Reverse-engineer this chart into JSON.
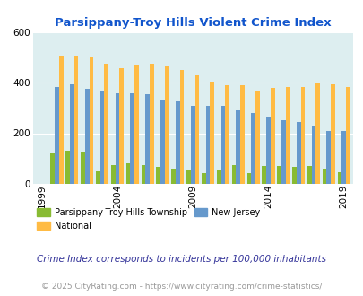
{
  "title": "Parsippany-Troy Hills Violent Crime Index",
  "years": [
    1999,
    2000,
    2001,
    2002,
    2003,
    2004,
    2005,
    2006,
    2007,
    2008,
    2009,
    2010,
    2011,
    2012,
    2013,
    2014,
    2015,
    2016,
    2017,
    2018,
    2019
  ],
  "parsippany": [
    0,
    120,
    130,
    125,
    50,
    75,
    80,
    75,
    65,
    60,
    55,
    40,
    55,
    75,
    40,
    70,
    70,
    65,
    70,
    60,
    45
  ],
  "national": [
    0,
    510,
    510,
    500,
    475,
    460,
    470,
    475,
    465,
    450,
    430,
    405,
    390,
    390,
    370,
    380,
    385,
    385,
    400,
    395,
    385
  ],
  "new_jersey": [
    0,
    385,
    395,
    375,
    365,
    360,
    360,
    355,
    330,
    325,
    310,
    310,
    310,
    290,
    280,
    265,
    250,
    245,
    230,
    210,
    210
  ],
  "parsippany_color": "#88bb33",
  "national_color": "#ffbb44",
  "new_jersey_color": "#6699cc",
  "background_color": "#ffffff",
  "plot_bg_color": "#ddeef0",
  "title_color": "#1155cc",
  "ylim": [
    0,
    600
  ],
  "yticks": [
    0,
    200,
    400,
    600
  ],
  "footnote1": "Crime Index corresponds to incidents per 100,000 inhabitants",
  "footnote2": "© 2025 CityRating.com - https://www.cityrating.com/crime-statistics/",
  "legend_parsippany": "Parsippany-Troy Hills Township",
  "legend_national": "National",
  "legend_nj": "New Jersey",
  "bar_width": 0.28
}
